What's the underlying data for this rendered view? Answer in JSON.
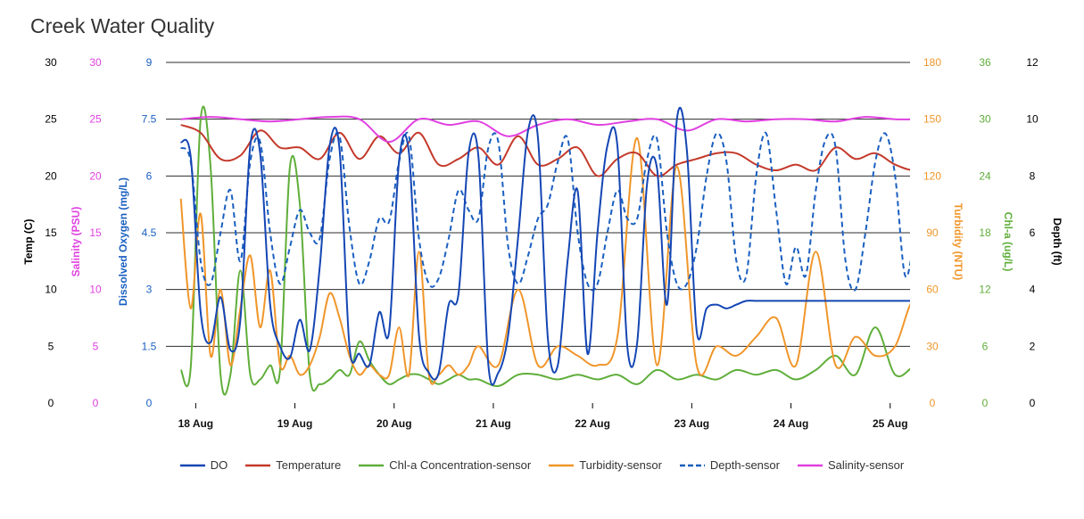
{
  "chart_data": {
    "type": "line",
    "title": "Creek Water Quality",
    "x_ticks": [
      "18 Aug",
      "19 Aug",
      "20 Aug",
      "21 Aug",
      "22 Aug",
      "23 Aug",
      "24 Aug",
      "25 Aug"
    ],
    "x_range": [
      "2023-08-17T10:00",
      "2023-08-25T08:00"
    ],
    "axes": [
      {
        "id": "temp",
        "label": "Temp (C)",
        "side": "left",
        "min": 0,
        "max": 30,
        "ticks": [
          "0",
          "5",
          "10",
          "15",
          "20",
          "25",
          "30"
        ],
        "color": "#000000"
      },
      {
        "id": "salinity",
        "label": "Salinity (PSU)",
        "side": "left",
        "min": 0,
        "max": 30,
        "ticks": [
          "0",
          "5",
          "10",
          "15",
          "20",
          "25",
          "30"
        ],
        "color": "#e040e0"
      },
      {
        "id": "do",
        "label": "Dissolved Oxygen (mg/L)",
        "side": "left",
        "min": 0,
        "max": 9,
        "ticks": [
          "0",
          "1.5",
          "3",
          "4.5",
          "6",
          "7.5",
          "9"
        ],
        "color": "#1a5fc0"
      },
      {
        "id": "turbidity",
        "label": "Turbidity (NTU)",
        "side": "right",
        "min": 0,
        "max": 180,
        "ticks": [
          "0",
          "30",
          "60",
          "90",
          "120",
          "150",
          "180"
        ],
        "color": "#f0962a"
      },
      {
        "id": "chla",
        "label": "Chl-a (ug/L)",
        "side": "right",
        "min": 0,
        "max": 36,
        "ticks": [
          "0",
          "6",
          "12",
          "18",
          "24",
          "30",
          "36"
        ],
        "color": "#5fae3a"
      },
      {
        "id": "depth",
        "label": "Depth (ft)",
        "side": "right",
        "min": 0,
        "max": 12,
        "ticks": [
          "0",
          "2",
          "4",
          "6",
          "8",
          "10",
          "12"
        ],
        "color": "#000000"
      }
    ],
    "series": [
      {
        "name": "DO",
        "axis": "do",
        "color": "#1446b4",
        "dash": false,
        "x": [
          0.0,
          0.1,
          0.2,
          0.3,
          0.4,
          0.5,
          0.6,
          0.7,
          0.8,
          0.9,
          1.0,
          1.1,
          1.2,
          1.3,
          1.4,
          1.5,
          1.6,
          1.7,
          1.8,
          1.9,
          2.0,
          2.1,
          2.2,
          2.3,
          2.4,
          2.5,
          2.6,
          2.7,
          2.8,
          2.9,
          3.0,
          3.1,
          3.2,
          3.3,
          3.4,
          3.5,
          3.6,
          3.7,
          3.8,
          3.9,
          4.0,
          4.1,
          4.2,
          4.3,
          4.4,
          4.5,
          4.6,
          4.7,
          4.8,
          4.9,
          5.0,
          5.1,
          5.2,
          5.3,
          5.4,
          5.5,
          5.6,
          5.7,
          5.8,
          5.9,
          6.0,
          6.1,
          6.2,
          6.3,
          6.4,
          6.5,
          6.6,
          6.7,
          6.8,
          6.9,
          7.0,
          7.1,
          7.2,
          7.3,
          7.4,
          7.5,
          7.6,
          7.7,
          7.8,
          7.9
        ],
        "y": [
          6.9,
          6.5,
          2.4,
          1.6,
          2.8,
          1.4,
          2.2,
          6.8,
          6.6,
          2.6,
          1.5,
          1.2,
          2.2,
          1.4,
          3.6,
          6.8,
          6.7,
          1.5,
          1.3,
          1.0,
          2.4,
          1.9,
          6.4,
          6.6,
          1.8,
          0.8,
          0.8,
          2.6,
          2.9,
          6.6,
          6.5,
          1.0,
          0.8,
          1.8,
          4.4,
          7.2,
          7.0,
          1.7,
          1.0,
          3.8,
          5.6,
          1.3,
          4.5,
          6.8,
          6.8,
          1.5,
          1.6,
          5.8,
          6.2,
          2.6,
          7.5,
          6.7,
          1.9,
          2.5,
          2.6,
          2.5,
          2.6,
          2.7,
          2.7,
          2.7,
          2.7,
          2.7,
          2.7,
          2.7,
          2.7,
          2.7,
          2.7,
          2.7,
          2.7,
          2.7,
          2.7,
          2.7,
          2.7,
          2.7,
          2.7,
          2.7,
          2.7,
          2.7,
          2.7,
          2.7
        ]
      },
      {
        "name": "Temperature",
        "axis": "temp",
        "color": "#c4392a",
        "dash": false,
        "x": [
          0.0,
          0.2,
          0.4,
          0.6,
          0.8,
          1.0,
          1.2,
          1.4,
          1.6,
          1.8,
          2.0,
          2.2,
          2.4,
          2.6,
          2.8,
          3.0,
          3.2,
          3.4,
          3.6,
          3.8,
          4.0,
          4.2,
          4.4,
          4.6,
          4.8,
          5.0,
          5.2,
          5.4,
          5.6,
          5.8,
          6.0,
          6.2,
          6.4,
          6.6,
          6.8,
          7.0,
          7.2,
          7.4,
          7.6,
          7.8
        ],
        "y": [
          24.5,
          23.8,
          21.5,
          21.8,
          24.0,
          22.5,
          22.5,
          21.5,
          23.8,
          21.5,
          23.5,
          22.0,
          23.8,
          21.0,
          21.5,
          22.5,
          21.0,
          23.5,
          21.0,
          21.5,
          22.5,
          20.0,
          21.5,
          22.0,
          20.0,
          21.0,
          21.5,
          22.0,
          22.0,
          21.0,
          20.5,
          21.0,
          20.5,
          22.5,
          21.5,
          22.0,
          21.0,
          20.5,
          21.0,
          21.0
        ]
      },
      {
        "name": "Chl-a Concentration-sensor",
        "axis": "chla",
        "color": "#5fae3a",
        "dash": false,
        "x": [
          0.0,
          0.1,
          0.2,
          0.3,
          0.4,
          0.5,
          0.6,
          0.7,
          0.8,
          0.9,
          1.0,
          1.1,
          1.2,
          1.3,
          1.4,
          1.5,
          1.6,
          1.7,
          1.8,
          1.9,
          2.0,
          2.1,
          2.2,
          2.3,
          2.4,
          2.5,
          2.6,
          2.7,
          2.8,
          2.9,
          3.0,
          3.2,
          3.4,
          3.6,
          3.8,
          4.0,
          4.2,
          4.4,
          4.6,
          4.8,
          5.0,
          5.2,
          5.4,
          5.6,
          5.8,
          6.0,
          6.2,
          6.4,
          6.6,
          6.8,
          7.0,
          7.2,
          7.4,
          7.6,
          7.8
        ],
        "y": [
          3.5,
          3.8,
          30.0,
          25.0,
          3.0,
          3.0,
          14.0,
          3.0,
          2.5,
          4.0,
          3.5,
          25.0,
          21.0,
          3.0,
          2.0,
          2.5,
          3.5,
          3.0,
          6.5,
          4.5,
          3.0,
          2.0,
          2.5,
          3.0,
          3.0,
          2.5,
          2.0,
          2.5,
          3.0,
          2.5,
          2.5,
          1.8,
          3.0,
          3.0,
          2.5,
          3.0,
          2.5,
          3.0,
          2.0,
          3.5,
          2.5,
          3.0,
          2.5,
          3.5,
          3.0,
          3.5,
          2.5,
          3.5,
          5.0,
          3.0,
          8.0,
          3.0,
          4.0,
          5.0,
          4.0
        ]
      },
      {
        "name": "Turbidity-sensor",
        "axis": "turbidity",
        "color": "#f0962a",
        "dash": false,
        "x": [
          0.0,
          0.1,
          0.2,
          0.3,
          0.4,
          0.5,
          0.6,
          0.7,
          0.8,
          0.9,
          1.0,
          1.1,
          1.2,
          1.3,
          1.4,
          1.5,
          1.6,
          1.7,
          1.8,
          1.9,
          2.0,
          2.1,
          2.2,
          2.3,
          2.4,
          2.5,
          2.6,
          2.7,
          2.8,
          2.9,
          3.0,
          3.2,
          3.4,
          3.6,
          3.8,
          4.0,
          4.2,
          4.4,
          4.6,
          4.8,
          5.0,
          5.2,
          5.4,
          5.6,
          5.8,
          6.0,
          6.2,
          6.4,
          6.6,
          6.8,
          7.0,
          7.2,
          7.4,
          7.6,
          7.8
        ],
        "y": [
          108.0,
          50.0,
          100.0,
          25.0,
          60.0,
          20.0,
          50.0,
          78.0,
          40.0,
          70.0,
          20.0,
          25.0,
          15.0,
          20.0,
          35.0,
          58.0,
          45.0,
          25.0,
          15.0,
          20.0,
          15.0,
          15.0,
          40.0,
          15.0,
          80.0,
          15.0,
          15.0,
          20.0,
          15.0,
          20.0,
          30.0,
          20.0,
          60.0,
          20.0,
          30.0,
          25.0,
          20.0,
          35.0,
          140.0,
          20.0,
          125.0,
          20.0,
          30.0,
          25.0,
          35.0,
          45.0,
          20.0,
          80.0,
          20.0,
          35.0,
          25.0,
          30.0,
          55.0,
          30.0,
          35.0
        ]
      },
      {
        "name": "Depth-sensor",
        "axis": "depth",
        "color": "#1a5fc0",
        "dash": true,
        "x": [
          0.0,
          0.1,
          0.2,
          0.3,
          0.4,
          0.5,
          0.6,
          0.7,
          0.8,
          0.9,
          1.0,
          1.1,
          1.2,
          1.3,
          1.4,
          1.5,
          1.6,
          1.7,
          1.8,
          1.9,
          2.0,
          2.1,
          2.2,
          2.3,
          2.4,
          2.5,
          2.6,
          2.7,
          2.8,
          2.9,
          3.0,
          3.1,
          3.2,
          3.3,
          3.4,
          3.5,
          3.6,
          3.7,
          3.8,
          3.9,
          4.0,
          4.1,
          4.2,
          4.3,
          4.4,
          4.5,
          4.6,
          4.7,
          4.8,
          4.9,
          5.0,
          5.1,
          5.2,
          5.3,
          5.4,
          5.5,
          5.6,
          5.7,
          5.8,
          5.9,
          6.0,
          6.1,
          6.2,
          6.3,
          6.4,
          6.5,
          6.6,
          6.7,
          6.8,
          6.9,
          7.0,
          7.1,
          7.2,
          7.3,
          7.4,
          7.5,
          7.6,
          7.8
        ],
        "y": [
          9.0,
          8.5,
          5.0,
          4.2,
          6.0,
          7.5,
          5.0,
          8.5,
          9.2,
          6.0,
          4.2,
          5.5,
          6.8,
          6.0,
          5.8,
          8.6,
          9.4,
          6.2,
          4.2,
          5.0,
          6.5,
          6.4,
          8.5,
          9.4,
          5.8,
          4.2,
          4.4,
          5.8,
          7.5,
          6.8,
          6.5,
          9.0,
          9.2,
          5.5,
          4.2,
          5.2,
          6.5,
          7.0,
          8.5,
          9.3,
          6.0,
          4.2,
          4.2,
          6.0,
          7.5,
          6.5,
          6.5,
          8.6,
          9.3,
          6.0,
          4.2,
          4.2,
          5.5,
          8.0,
          9.5,
          8.5,
          5.0,
          4.5,
          8.0,
          9.5,
          6.8,
          4.2,
          5.5,
          4.5,
          7.5,
          9.3,
          9.0,
          5.0,
          4.0,
          6.0,
          8.5,
          9.5,
          8.0,
          4.5,
          6.0,
          8.5,
          9.5,
          4.8
        ]
      },
      {
        "name": "Salinity-sensor",
        "axis": "salinity",
        "color": "#e040e0",
        "dash": false,
        "x": [
          0.0,
          0.3,
          0.6,
          0.9,
          1.2,
          1.5,
          1.8,
          2.1,
          2.4,
          2.7,
          3.0,
          3.3,
          3.6,
          3.9,
          4.2,
          4.5,
          4.8,
          5.1,
          5.4,
          5.7,
          6.0,
          6.3,
          6.6,
          6.9,
          7.2,
          7.5,
          7.8
        ],
        "y": [
          25.0,
          25.2,
          25.0,
          24.8,
          25.0,
          25.2,
          25.0,
          23.0,
          25.0,
          24.5,
          24.8,
          23.5,
          24.5,
          25.0,
          24.5,
          24.8,
          25.0,
          24.0,
          25.0,
          24.8,
          25.0,
          25.0,
          24.8,
          25.2,
          25.0,
          25.0,
          25.0
        ]
      }
    ],
    "legend_placement": "bottom",
    "grid": true
  }
}
